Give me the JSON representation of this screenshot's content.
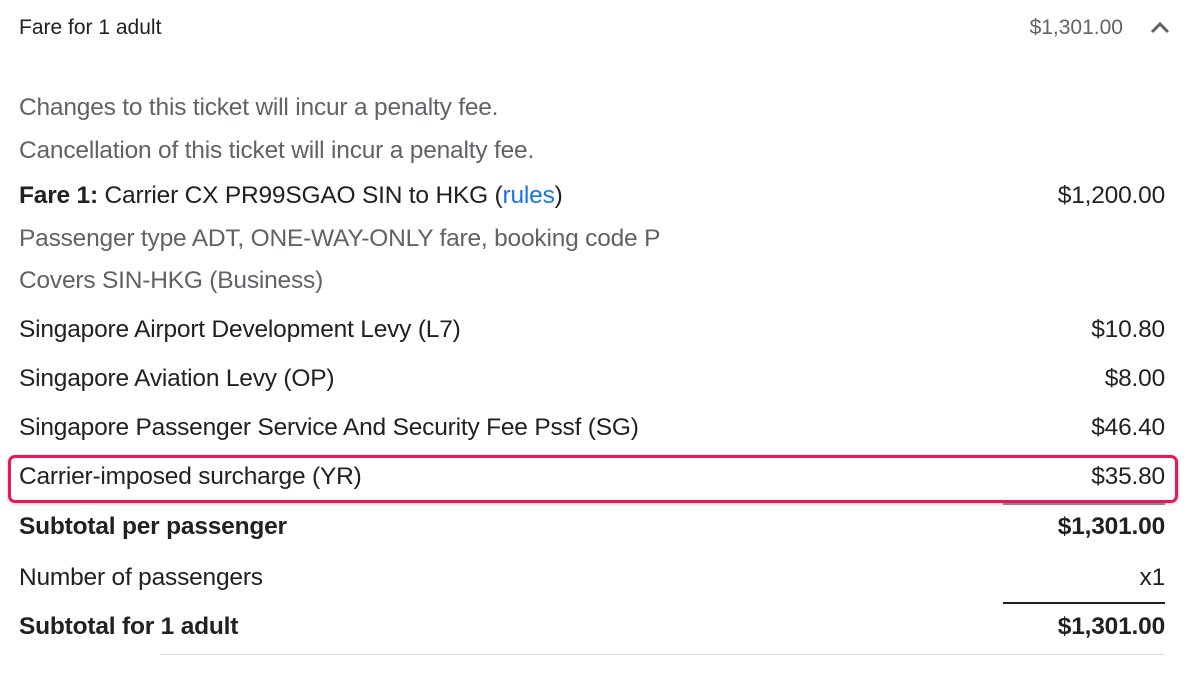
{
  "header": {
    "title": "Fare for 1 adult",
    "price": "$1,301.00",
    "toggle_icon": "chevron-up-icon"
  },
  "notes": [
    "Changes to this ticket will incur a penalty fee.",
    "Cancellation of this ticket will incur a penalty fee."
  ],
  "fare": {
    "label": "Fare 1:",
    "description_before": " Carrier CX PR99SGAO SIN to HKG (",
    "rules_link": "rules",
    "description_after": ")",
    "amount": "$1,200.00",
    "details": [
      "Passenger type ADT, ONE-WAY-ONLY fare, booking code P",
      "Covers SIN-HKG (Business)"
    ]
  },
  "taxes": [
    {
      "label": "Singapore Airport Development Levy (L7)",
      "amount": "$10.80"
    },
    {
      "label": "Singapore Aviation Levy (OP)",
      "amount": "$8.00"
    },
    {
      "label": "Singapore Passenger Service And Security Fee Pssf (SG)",
      "amount": "$46.40"
    },
    {
      "label": "Carrier-imposed surcharge (YR)",
      "amount": "$35.80",
      "highlighted": true
    }
  ],
  "subtotal_per_passenger": {
    "label": "Subtotal per passenger",
    "amount": "$1,301.00"
  },
  "passengers": {
    "label": "Number of passengers",
    "value": "x1"
  },
  "subtotal_total": {
    "label": "Subtotal for 1 adult",
    "amount": "$1,301.00"
  },
  "colors": {
    "highlight": "#e8175d",
    "link": "#1a73e8"
  }
}
